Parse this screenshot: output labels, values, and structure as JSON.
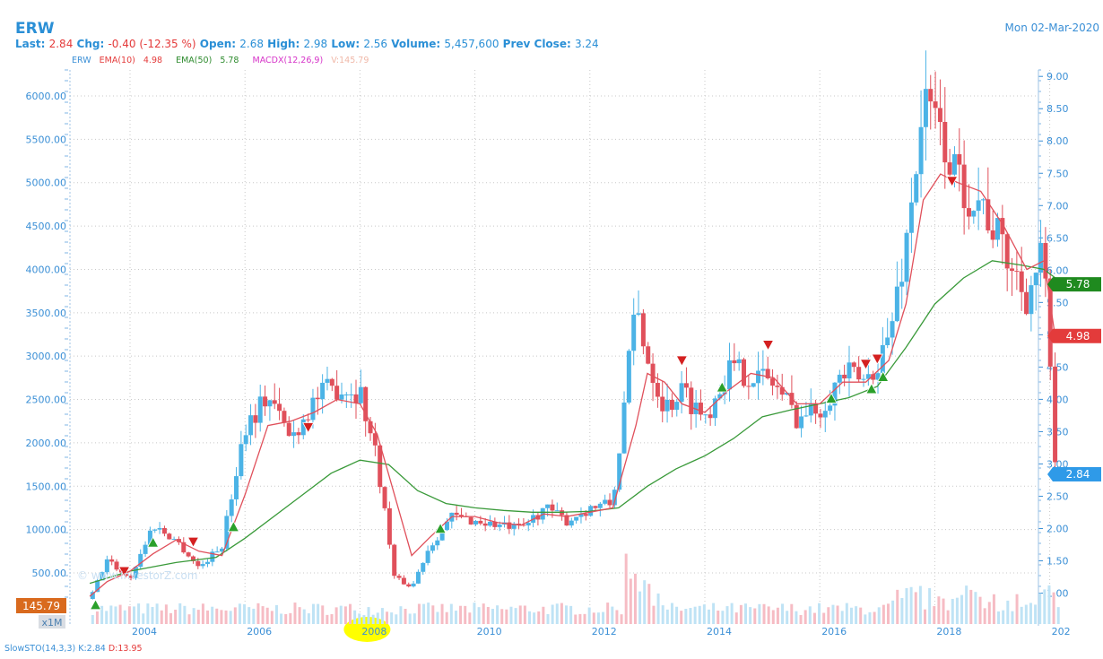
{
  "header": {
    "ticker": "ERW",
    "date": "Mon 02-Mar-2020",
    "last_label": "Last:",
    "last": "2.84",
    "chg_label": "Chg:",
    "chg": "-0.40 (-12.35 %)",
    "open_label": "Open:",
    "open": "2.68",
    "high_label": "High:",
    "high": "2.98",
    "low_label": "Low:",
    "low": "2.56",
    "volume_label": "Volume:",
    "volume": "5,457,600",
    "prev_label": "Prev Close:",
    "prev": "3.24"
  },
  "legend": {
    "erw": "ERW",
    "ema10": "EMA(10)",
    "ema10_val": "4.98",
    "ema50": "EMA(50)",
    "ema50_val": "5.78",
    "macdx": "MACDX(12,26,9)",
    "v": "V:145.79"
  },
  "indicator": {
    "name": "SlowSTO(14,3,3)",
    "k": "K:2.84",
    "d": "D:13.95"
  },
  "watermark": "© www.InvestorZ.com",
  "colors": {
    "up": "#4bb3e6",
    "down": "#e0505b",
    "ema10": "#e0505b",
    "ema50": "#3a9a3a",
    "axis_text": "#3a8fd6",
    "highlight": "#ffff00"
  },
  "chart_data": {
    "type": "candlestick",
    "title": "ERW",
    "x_ticks": [
      "2004",
      "2006",
      "2008",
      "2010",
      "2012",
      "2014",
      "2016",
      "2018",
      "202"
    ],
    "highlighted_tick": "2008",
    "left_axis_ticks": [
      "500.00",
      "1000.00",
      "1500.00",
      "2000.00",
      "2500.00",
      "3000.00",
      "3500.00",
      "4000.00",
      "4500.00",
      "5000.00",
      "5500.00",
      "6000.00"
    ],
    "left_axis_range": [
      200,
      6300
    ],
    "right_axis_ticks": [
      "1.00",
      "1.50",
      "2.00",
      "2.50",
      "3.00",
      "3.50",
      "4.00",
      "4.50",
      "5.00",
      "5.50",
      "6.00",
      "6.50",
      "7.00",
      "7.50",
      "8.00",
      "8.50",
      "9.00"
    ],
    "right_axis_range": [
      0.91,
      9.1
    ],
    "badges": [
      {
        "label": "5.78",
        "value": 5.78,
        "color": "#1f8a1f"
      },
      {
        "label": "4.98",
        "value": 4.98,
        "color": "#e33b3b"
      },
      {
        "label": "2.84",
        "value": 2.84,
        "color": "#2f9ae8"
      },
      {
        "label": "145.79",
        "value": 145.79,
        "color": "#d96a1e",
        "axis": "left"
      }
    ],
    "volume_label": "x1M",
    "price_series": {
      "name": "ERW",
      "x": [
        2003.3,
        2003.6,
        2004.0,
        2004.4,
        2004.8,
        2005.2,
        2005.6,
        2006.0,
        2006.4,
        2006.8,
        2007.2,
        2007.6,
        2008.0,
        2008.3,
        2008.6,
        2008.9,
        2009.2,
        2009.6,
        2010.0,
        2010.4,
        2010.8,
        2011.2,
        2011.6,
        2012.0,
        2012.4,
        2012.8,
        2013.0,
        2013.3,
        2013.6,
        2014.0,
        2014.4,
        2014.8,
        2015.2,
        2015.6,
        2016.0,
        2016.4,
        2016.8,
        2017.2,
        2017.5,
        2017.8,
        2018.1,
        2018.4,
        2018.8,
        2019.2,
        2019.6,
        2019.9,
        2020.1
      ],
      "values": [
        200,
        650,
        430,
        1050,
        880,
        560,
        820,
        2200,
        2550,
        2050,
        2500,
        2650,
        2600,
        1800,
        450,
        330,
        800,
        1150,
        1100,
        1050,
        1000,
        1250,
        1100,
        1250,
        1300,
        3600,
        3000,
        2400,
        2600,
        2300,
        2850,
        2800,
        2700,
        2300,
        2400,
        2800,
        2700,
        3200,
        4300,
        5900,
        5600,
        5000,
        4800,
        4200,
        3700,
        4200,
        1600
      ],
      "ema10": [
        230,
        400,
        520,
        720,
        880,
        750,
        700,
        1400,
        2200,
        2250,
        2350,
        2500,
        2450,
        2100,
        1400,
        700,
        900,
        1150,
        1150,
        1080,
        1050,
        1180,
        1150,
        1200,
        1250,
        2200,
        2800,
        2700,
        2450,
        2350,
        2600,
        2800,
        2750,
        2450,
        2450,
        2700,
        2700,
        2950,
        3600,
        4800,
        5100,
        5000,
        4900,
        4500,
        4000,
        4100,
        3200
      ]
    },
    "ema50_series": {
      "name": "EMA(50)",
      "x": [
        2003.3,
        2004.0,
        2004.8,
        2005.5,
        2006.0,
        2006.8,
        2007.5,
        2008.0,
        2008.5,
        2009.0,
        2009.5,
        2010.0,
        2010.5,
        2011.0,
        2011.5,
        2012.0,
        2012.5,
        2013.0,
        2013.5,
        2014.0,
        2014.5,
        2015.0,
        2015.5,
        2016.0,
        2016.5,
        2017.0,
        2017.5,
        2018.0,
        2018.5,
        2019.0,
        2019.5,
        2019.9,
        2020.1
      ],
      "values": [
        380,
        520,
        620,
        680,
        900,
        1300,
        1650,
        1800,
        1750,
        1450,
        1300,
        1250,
        1220,
        1200,
        1200,
        1210,
        1250,
        1500,
        1700,
        1850,
        2050,
        2300,
        2380,
        2450,
        2520,
        2650,
        3100,
        3600,
        3900,
        4100,
        4050,
        4000,
        3900
      ]
    },
    "buy_signals": [
      {
        "x": 2003.4,
        "value": 130
      },
      {
        "x": 2004.4,
        "value": 850
      },
      {
        "x": 2005.8,
        "value": 1030
      },
      {
        "x": 2009.4,
        "value": 1010
      },
      {
        "x": 2014.3,
        "value": 2640
      },
      {
        "x": 2016.2,
        "value": 2510
      },
      {
        "x": 2016.9,
        "value": 2620
      },
      {
        "x": 2017.1,
        "value": 2760
      }
    ],
    "sell_signals": [
      {
        "x": 2003.9,
        "value": 520
      },
      {
        "x": 2005.1,
        "value": 860
      },
      {
        "x": 2007.1,
        "value": 2180
      },
      {
        "x": 2013.6,
        "value": 2950
      },
      {
        "x": 2015.1,
        "value": 3130
      },
      {
        "x": 2016.8,
        "value": 2910
      },
      {
        "x": 2017.0,
        "value": 2970
      },
      {
        "x": 2018.3,
        "value": 5020
      }
    ]
  }
}
